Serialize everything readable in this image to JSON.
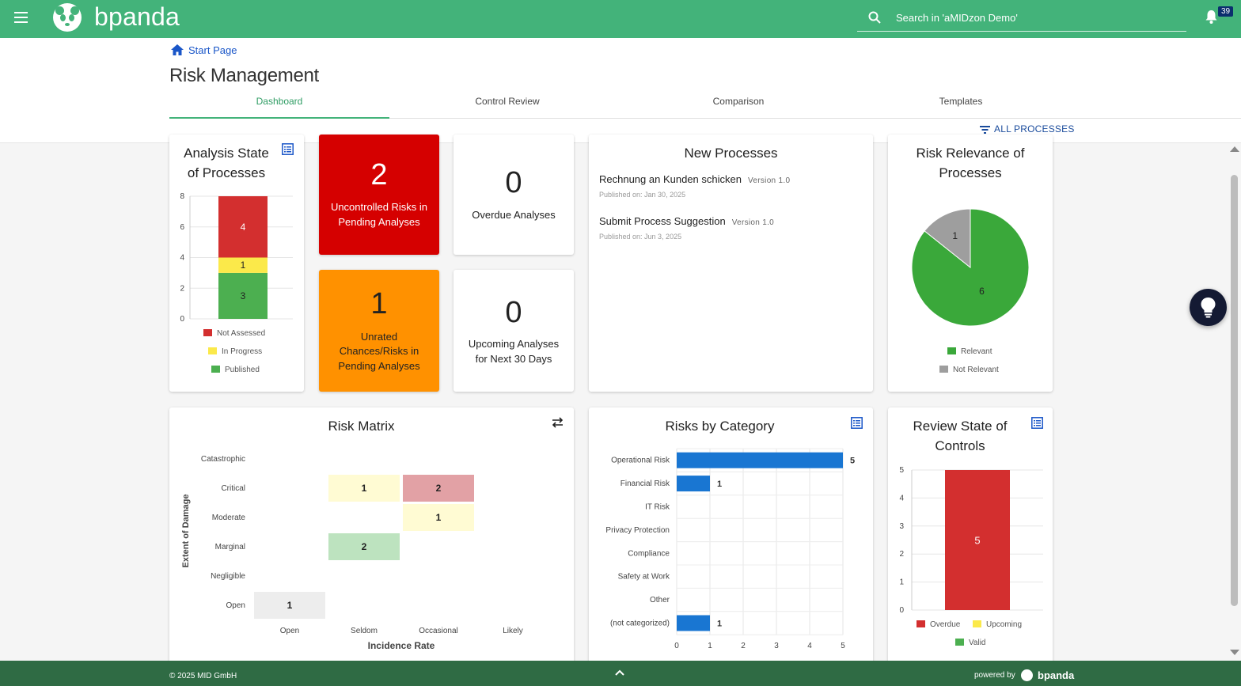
{
  "app": {
    "brand": "bpanda",
    "search_placeholder": "Search in 'aMIDzon Demo'",
    "notification_count": "39"
  },
  "breadcrumb": {
    "label": "Start Page"
  },
  "page": {
    "title": "Risk Management"
  },
  "tabs": [
    {
      "label": "Dashboard",
      "active": true
    },
    {
      "label": "Control Review"
    },
    {
      "label": "Comparison"
    },
    {
      "label": "Templates"
    }
  ],
  "filter": {
    "label": "ALL PROCESSES"
  },
  "analysis_state": {
    "title_line1": "Analysis State",
    "title_line2": "of Processes",
    "y_ticks": [
      "8",
      "6",
      "4",
      "2",
      "0"
    ],
    "legend": [
      "Not Assessed",
      "In Progress",
      "Published"
    ],
    "colors": {
      "not_assessed": "#d32f2f",
      "in_progress": "#fbe94a",
      "published": "#4caf50"
    }
  },
  "kpis": {
    "uncontrolled": {
      "value": "2",
      "line1": "Uncontrolled Risks in",
      "line2": "Pending Analyses",
      "color": "#d50000"
    },
    "overdue": {
      "value": "0",
      "line1": "Overdue Analyses"
    },
    "unrated": {
      "value": "1",
      "line1": "Unrated",
      "line2": "Chances/Risks in",
      "line3": "Pending Analyses",
      "color": "#ff9100"
    },
    "upcoming": {
      "value": "0",
      "line1": "Upcoming Analyses",
      "line2": "for Next 30 Days"
    }
  },
  "new_processes": {
    "title": "New Processes",
    "items": [
      {
        "name": "Rechnung an Kunden schicken",
        "version": "Version 1.0",
        "date": "Published on: Jan 30, 2025"
      },
      {
        "name": "Submit Process Suggestion",
        "version": "Version 1.0",
        "date": "Published on: Jun 3, 2025"
      }
    ]
  },
  "risk_relevance": {
    "title_line1": "Risk Relevance of",
    "title_line2": "Processes",
    "legend": [
      "Relevant",
      "Not Relevant"
    ]
  },
  "risk_matrix": {
    "title": "Risk Matrix",
    "y_axis": "Extent of Damage",
    "x_axis": "Incidence Rate",
    "rows": [
      "Catastrophic",
      "Critical",
      "Moderate",
      "Marginal",
      "Negligible",
      "Open"
    ],
    "cols": [
      "Open",
      "Seldom",
      "Occasional",
      "Likely"
    ],
    "cells": {
      "critical_seldom": "1",
      "critical_occasional": "2",
      "moderate_occasional": "1",
      "marginal_seldom": "2",
      "open_open": "1"
    }
  },
  "risks_by_category": {
    "title": "Risks by Category",
    "x_ticks": [
      "0",
      "1",
      "2",
      "3",
      "4",
      "5"
    ]
  },
  "review_state": {
    "title_line1": "Review State of",
    "title_line2": "Controls",
    "y_ticks": [
      "5",
      "4",
      "3",
      "2",
      "1",
      "0"
    ],
    "legend": [
      "Overdue",
      "Upcoming",
      "Valid"
    ]
  },
  "chart_data": [
    {
      "type": "bar",
      "stacked": true,
      "categories": [
        ""
      ],
      "series": [
        {
          "name": "Published",
          "values": [
            3
          ]
        },
        {
          "name": "In Progress",
          "values": [
            1
          ]
        },
        {
          "name": "Not Assessed",
          "values": [
            4
          ]
        }
      ],
      "ylim": [
        0,
        8
      ]
    },
    {
      "type": "pie",
      "labels": [
        "Relevant",
        "Not Relevant"
      ],
      "values": [
        6,
        1
      ],
      "colors": [
        "#3aa83a",
        "#9e9e9e"
      ]
    },
    {
      "type": "bar",
      "orientation": "horizontal",
      "categories": [
        "Operational Risk",
        "Financial Risk",
        "IT Risk",
        "Privacy Protection",
        "Compliance",
        "Safety at Work",
        "Other",
        "(not categorized)"
      ],
      "values": [
        5,
        1,
        0,
        0,
        0,
        0,
        0,
        1
      ],
      "xlim": [
        0,
        5
      ]
    },
    {
      "type": "bar",
      "stacked": true,
      "categories": [
        ""
      ],
      "series": [
        {
          "name": "Overdue",
          "values": [
            5
          ]
        },
        {
          "name": "Upcoming",
          "values": [
            0
          ]
        },
        {
          "name": "Valid",
          "values": [
            0
          ]
        }
      ],
      "ylim": [
        0,
        5
      ]
    }
  ],
  "footer": {
    "copyright": "© 2025 MID GmbH",
    "powered_by": "powered by",
    "brand": "bpanda"
  }
}
